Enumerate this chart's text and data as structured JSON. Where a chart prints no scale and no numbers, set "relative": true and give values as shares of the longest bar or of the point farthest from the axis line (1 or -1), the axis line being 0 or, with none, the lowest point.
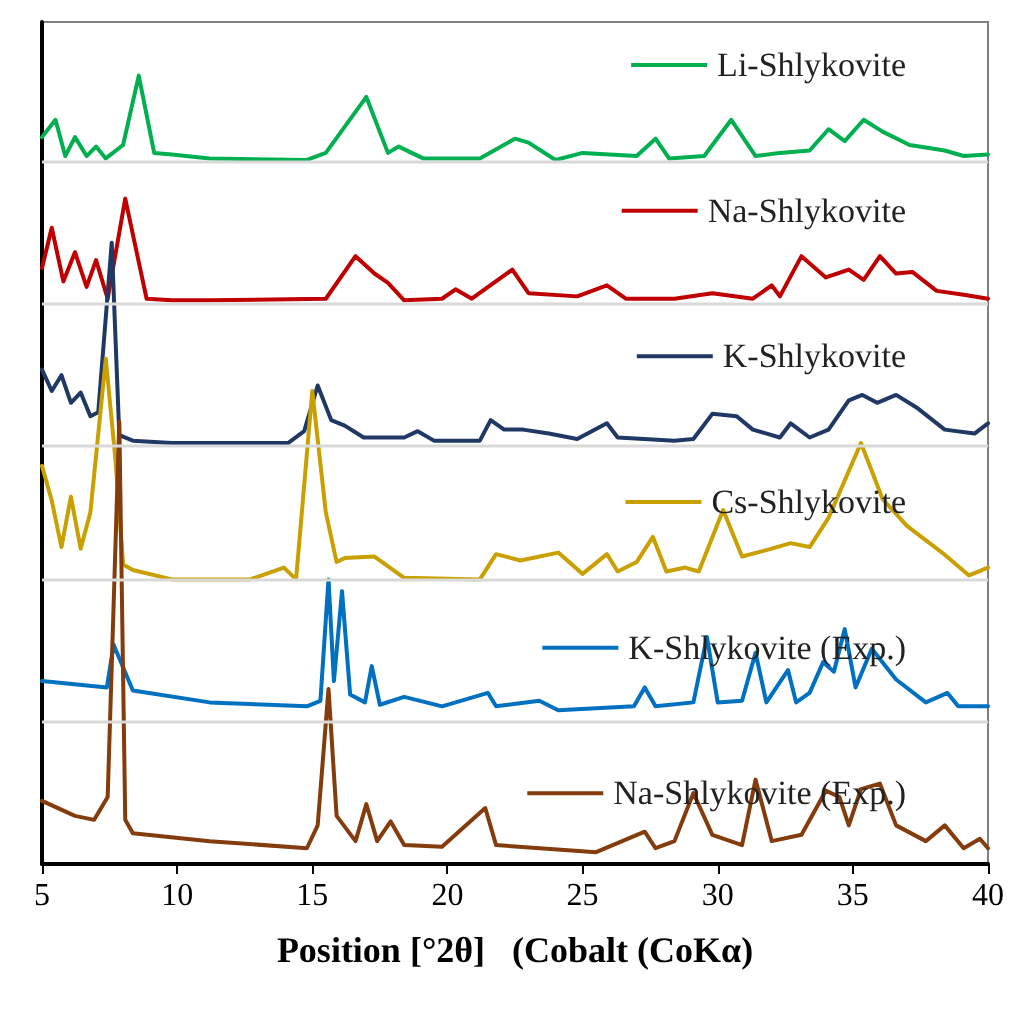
{
  "chart_data": {
    "type": "line",
    "relative": true,
    "xlabel": "Position [°2θ]   (Cobalt (CoKα)",
    "xlim": [
      5,
      40
    ],
    "xticks": [
      5,
      10,
      15,
      20,
      25,
      30,
      35,
      40
    ],
    "grid": "y",
    "legend": "right",
    "line_style": "solid",
    "marker": "none",
    "series": [
      {
        "name": "Li-Shlykovite",
        "color": "#00b050",
        "x": [
          5.0,
          5.5,
          5.86,
          6.22,
          6.65,
          7.0,
          7.36,
          8.0,
          8.58,
          9.15,
          9.8,
          11.2,
          14.8,
          15.5,
          17.0,
          17.8,
          18.2,
          19.1,
          21.2,
          22.5,
          23.0,
          24.0,
          25.0,
          27.0,
          27.7,
          28.2,
          29.5,
          30.5,
          31.4,
          32.3,
          33.4,
          34.1,
          34.7,
          35.4,
          36.1,
          37.1,
          38.4,
          39.1,
          40.0
        ],
        "values": [
          0.922,
          0.944,
          0.898,
          0.922,
          0.898,
          0.91,
          0.895,
          0.912,
          1.0,
          0.902,
          0.9,
          0.895,
          0.893,
          0.902,
          0.973,
          0.902,
          0.91,
          0.895,
          0.895,
          0.92,
          0.915,
          0.893,
          0.902,
          0.898,
          0.92,
          0.895,
          0.898,
          0.944,
          0.898,
          0.902,
          0.905,
          0.932,
          0.917,
          0.944,
          0.929,
          0.912,
          0.905,
          0.898,
          0.9
        ]
      },
      {
        "name": "Na-Shlykovite",
        "color": "#c00000",
        "x": [
          5.0,
          5.36,
          5.79,
          6.22,
          6.65,
          7.0,
          7.43,
          8.08,
          8.87,
          9.8,
          11.2,
          15.5,
          16.6,
          17.3,
          17.8,
          18.4,
          19.8,
          20.3,
          20.9,
          22.4,
          23.0,
          24.8,
          25.9,
          26.6,
          28.4,
          29.8,
          31.3,
          32.0,
          32.3,
          33.1,
          34.0,
          34.85,
          35.4,
          36.0,
          36.6,
          37.2,
          38.1,
          39.1,
          40.0
        ],
        "values": [
          0.756,
          0.807,
          0.739,
          0.776,
          0.732,
          0.766,
          0.717,
          0.844,
          0.717,
          0.715,
          0.715,
          0.717,
          0.771,
          0.749,
          0.737,
          0.715,
          0.717,
          0.729,
          0.717,
          0.754,
          0.724,
          0.72,
          0.734,
          0.717,
          0.717,
          0.724,
          0.717,
          0.734,
          0.72,
          0.771,
          0.744,
          0.754,
          0.741,
          0.771,
          0.749,
          0.751,
          0.727,
          0.722,
          0.717
        ]
      },
      {
        "name": "K-Shlykovite",
        "color": "#1f3864",
        "x": [
          5.0,
          5.36,
          5.72,
          6.07,
          6.43,
          6.79,
          7.08,
          7.58,
          7.86,
          8.36,
          9.8,
          14.1,
          14.7,
          15.2,
          15.7,
          16.2,
          16.9,
          18.4,
          18.9,
          19.5,
          21.2,
          21.6,
          22.1,
          22.8,
          23.75,
          24.8,
          25.9,
          26.3,
          28.4,
          29.1,
          29.8,
          30.7,
          31.3,
          32.3,
          32.7,
          33.4,
          34.1,
          34.85,
          35.35,
          35.9,
          36.6,
          37.4,
          38.4,
          39.5,
          40.0
        ],
        "values": [
          0.627,
          0.6,
          0.62,
          0.585,
          0.598,
          0.568,
          0.573,
          0.788,
          0.544,
          0.537,
          0.534,
          0.534,
          0.549,
          0.607,
          0.563,
          0.556,
          0.541,
          0.541,
          0.549,
          0.537,
          0.537,
          0.563,
          0.551,
          0.551,
          0.546,
          0.539,
          0.559,
          0.541,
          0.537,
          0.539,
          0.571,
          0.568,
          0.551,
          0.541,
          0.559,
          0.541,
          0.551,
          0.588,
          0.595,
          0.585,
          0.595,
          0.578,
          0.551,
          0.546,
          0.559
        ]
      },
      {
        "name": "Cs-Shlykovite",
        "color": "#c9a000",
        "x": [
          5.0,
          5.36,
          5.72,
          6.07,
          6.43,
          6.79,
          7.36,
          7.72,
          8.0,
          8.36,
          9.8,
          12.7,
          13.95,
          14.4,
          15.0,
          15.5,
          15.9,
          16.2,
          17.3,
          18.4,
          21.2,
          21.8,
          22.7,
          24.1,
          25.0,
          25.9,
          26.3,
          27.0,
          27.6,
          28.1,
          28.8,
          29.3,
          30.2,
          30.9,
          32.0,
          32.7,
          33.4,
          34.1,
          35.3,
          36.1,
          37.0,
          38.3,
          39.3,
          40.0
        ],
        "values": [
          0.505,
          0.461,
          0.402,
          0.466,
          0.4,
          0.446,
          0.641,
          0.512,
          0.38,
          0.373,
          0.361,
          0.361,
          0.376,
          0.361,
          0.6,
          0.446,
          0.383,
          0.388,
          0.39,
          0.363,
          0.361,
          0.393,
          0.385,
          0.395,
          0.368,
          0.393,
          0.371,
          0.383,
          0.415,
          0.371,
          0.376,
          0.371,
          0.449,
          0.39,
          0.4,
          0.407,
          0.402,
          0.439,
          0.534,
          0.463,
          0.429,
          0.395,
          0.366,
          0.376
        ]
      },
      {
        "name": "K-Shlykovite (Exp.)",
        "color": "#0070c0",
        "x": [
          5.0,
          7.4,
          7.65,
          8.36,
          11.2,
          14.8,
          15.3,
          15.6,
          15.8,
          16.1,
          16.4,
          16.95,
          17.2,
          17.5,
          18.4,
          19.8,
          21.5,
          21.8,
          23.4,
          24.1,
          26.9,
          27.3,
          27.7,
          29.1,
          29.6,
          30.0,
          30.9,
          31.4,
          31.8,
          32.6,
          32.9,
          33.4,
          33.9,
          34.3,
          34.7,
          35.1,
          35.7,
          36.6,
          37.7,
          38.5,
          38.9,
          40.0
        ],
        "values": [
          0.232,
          0.224,
          0.278,
          0.22,
          0.205,
          0.2,
          0.207,
          0.361,
          0.232,
          0.346,
          0.215,
          0.205,
          0.251,
          0.202,
          0.212,
          0.2,
          0.217,
          0.2,
          0.207,
          0.195,
          0.2,
          0.224,
          0.2,
          0.205,
          0.288,
          0.205,
          0.207,
          0.268,
          0.205,
          0.246,
          0.205,
          0.217,
          0.256,
          0.244,
          0.298,
          0.224,
          0.273,
          0.234,
          0.205,
          0.217,
          0.2,
          0.2
        ]
      },
      {
        "name": "Na-Shlykovite (Exp.)",
        "color": "#843c0c",
        "x": [
          5.0,
          6.22,
          6.93,
          7.43,
          7.86,
          8.08,
          8.36,
          11.2,
          14.8,
          15.2,
          15.6,
          15.9,
          16.6,
          17.0,
          17.4,
          17.9,
          18.4,
          19.8,
          21.4,
          21.8,
          25.5,
          27.3,
          27.7,
          28.4,
          29.1,
          29.8,
          30.9,
          31.4,
          32.0,
          33.1,
          34.0,
          34.5,
          34.85,
          35.3,
          36.0,
          36.6,
          37.7,
          38.4,
          39.1,
          39.7,
          40.0
        ],
        "values": [
          0.08,
          0.061,
          0.056,
          0.085,
          0.561,
          0.056,
          0.039,
          0.029,
          0.02,
          0.049,
          0.222,
          0.061,
          0.029,
          0.076,
          0.029,
          0.054,
          0.024,
          0.022,
          0.071,
          0.024,
          0.015,
          0.041,
          0.02,
          0.029,
          0.09,
          0.037,
          0.024,
          0.107,
          0.029,
          0.037,
          0.093,
          0.085,
          0.049,
          0.095,
          0.102,
          0.049,
          0.029,
          0.049,
          0.02,
          0.032,
          0.02
        ]
      }
    ]
  }
}
